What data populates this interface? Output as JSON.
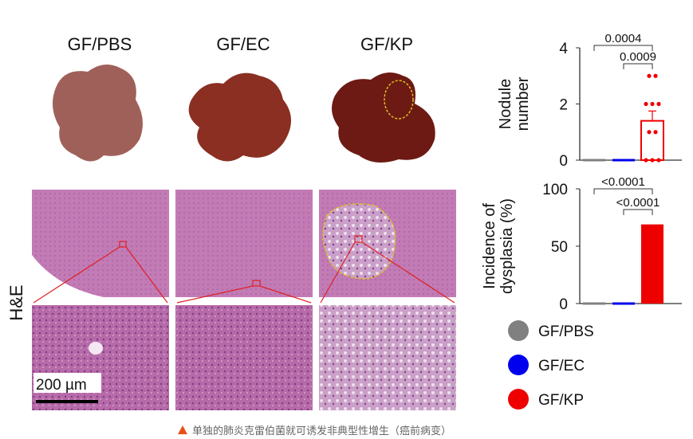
{
  "panels": {
    "groups": [
      "GF/PBS",
      "GF/EC",
      "GF/KP"
    ],
    "stain_label": "H&E",
    "scale_bar": "200 µm"
  },
  "legend": [
    {
      "label": "GF/PBS",
      "color": "#808080"
    },
    {
      "label": "GF/EC",
      "color": "#0000ee"
    },
    {
      "label": "GF/KP",
      "color": "#ee0000"
    }
  ],
  "chart_data": [
    {
      "type": "bar",
      "ylabel": "Nodule number",
      "ylim": [
        0,
        4
      ],
      "yticks": [
        0,
        2,
        4
      ],
      "categories": [
        "GF/PBS",
        "GF/EC",
        "GF/KP"
      ],
      "values": [
        0,
        0,
        1.4
      ],
      "error": [
        0,
        0,
        0.35
      ],
      "points": [
        [
          0,
          0,
          0,
          0,
          0,
          0,
          0,
          0,
          0,
          0
        ],
        [
          0,
          0,
          0,
          0,
          0,
          0,
          0,
          0,
          0,
          0
        ],
        [
          3,
          3,
          2,
          2,
          2,
          1,
          1,
          0,
          0,
          0
        ]
      ],
      "comparisons": [
        {
          "from": "GF/PBS",
          "to": "GF/KP",
          "p": "0.0004"
        },
        {
          "from": "GF/EC",
          "to": "GF/KP",
          "p": "0.0009"
        }
      ]
    },
    {
      "type": "bar",
      "ylabel": "Incidence of dysplasia (%)",
      "ylim": [
        0,
        100
      ],
      "yticks": [
        0,
        50,
        100
      ],
      "categories": [
        "GF/PBS",
        "GF/EC",
        "GF/KP"
      ],
      "values": [
        0,
        0,
        69
      ],
      "comparisons": [
        {
          "from": "GF/PBS",
          "to": "GF/KP",
          "p": "<0.0001"
        },
        {
          "from": "GF/EC",
          "to": "GF/KP",
          "p": "<0.0001"
        }
      ]
    }
  ],
  "caption": {
    "icon": "triangle-up-icon",
    "icon_color": "#e8501a",
    "text": "单独的肺炎克雷伯菌就可诱发非典型性增生（癌前病变）"
  }
}
